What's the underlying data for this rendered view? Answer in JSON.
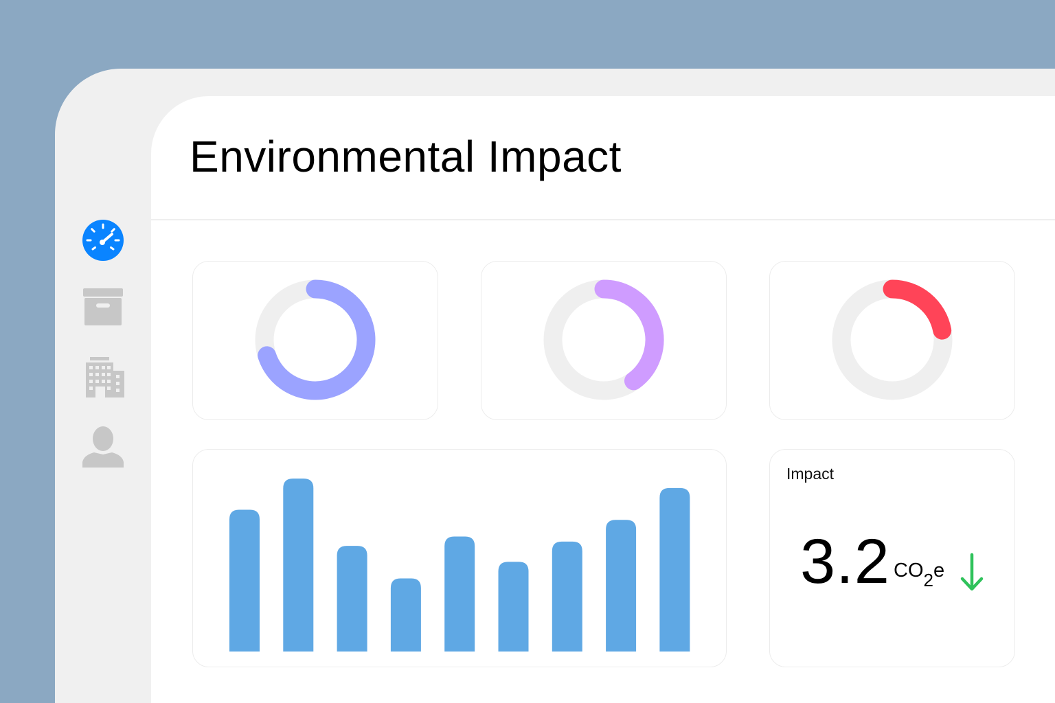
{
  "page": {
    "title": "Environmental Impact"
  },
  "sidebar": {
    "items": [
      {
        "name": "dashboard",
        "icon": "speedometer-icon",
        "active": true,
        "color": "#0a84ff"
      },
      {
        "name": "archive",
        "icon": "archive-box-icon",
        "active": false,
        "color": "#c7c7c7"
      },
      {
        "name": "buildings",
        "icon": "building-icon",
        "active": false,
        "color": "#c7c7c7"
      },
      {
        "name": "profile",
        "icon": "person-icon",
        "active": false,
        "color": "#c7c7c7"
      }
    ]
  },
  "donuts": [
    {
      "value": 0.7,
      "color": "#9ba3ff",
      "track_color": "#efefef"
    },
    {
      "value": 0.4,
      "color": "#cf9cff",
      "track_color": "#efefef"
    },
    {
      "value": 0.22,
      "color": "#ff4458",
      "track_color": "#efefef"
    }
  ],
  "chart_data": {
    "type": "bar",
    "values": [
      196,
      239,
      146,
      101,
      159,
      124,
      152,
      182,
      226
    ],
    "ylim": [
      0,
      260
    ],
    "color": "#5fa8e4",
    "grid": false
  },
  "impact": {
    "label": "Impact",
    "value": "3.2",
    "unit_main": "CO",
    "unit_sub": "2",
    "unit_tail": "e",
    "trend": "down",
    "trend_color": "#2fc25b",
    "trend_icon": "arrow-down-icon"
  }
}
